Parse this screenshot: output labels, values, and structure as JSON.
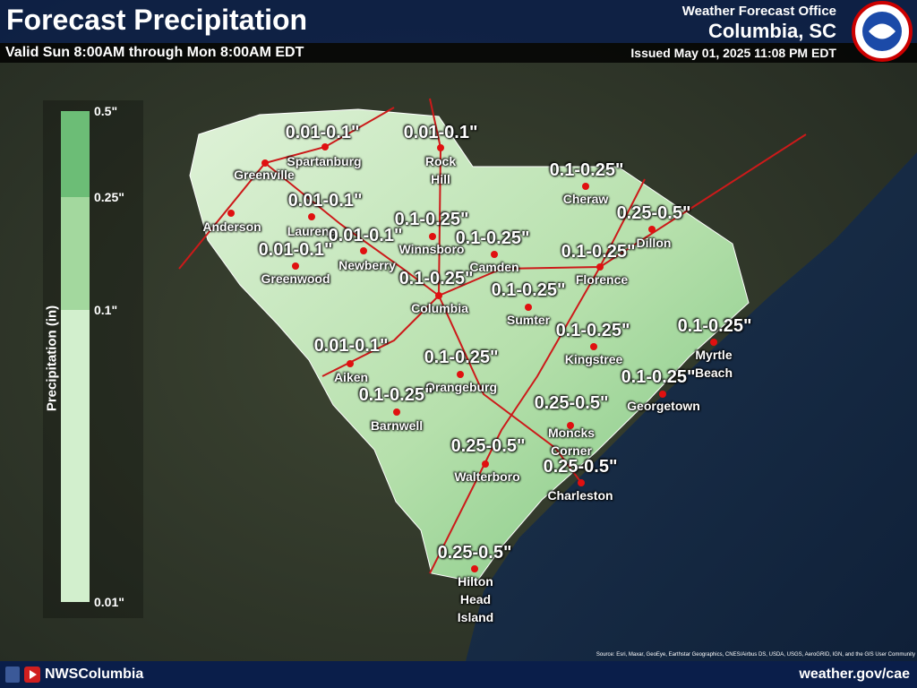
{
  "header": {
    "title": "Forecast Precipitation",
    "subtitle": "Valid Sun 8:00AM through Mon 8:00AM EDT",
    "office_line": "Weather Forecast Office",
    "office": "Columbia, SC",
    "issued": "Issued May 01, 2025 11:08 PM EDT"
  },
  "legend": {
    "title": "Precipitation (in)",
    "labels": [
      "0.5\"",
      "0.25\"",
      "0.1\"",
      "0.01\""
    ]
  },
  "amounts": [
    "0.01-0.1\"",
    "0.01-0.1\"",
    "0.1-0.25\"",
    "0.25-0.5\"",
    "0.01-0.1\"",
    "0.1-0.25\"",
    "0.01-0.1\"",
    "0.01-0.1\"",
    "0.1-0.25\"",
    "0.1-0.25\"",
    "0.1-0.25\"",
    "0.1-0.25\"",
    "0.1-0.25\"",
    "0.1-0.25\"",
    "0.01-0.1\"",
    "0.1-0.25\"",
    "0.1-0.25\"",
    "0.1-0.25\"",
    "0.25-0.5\"",
    "0.25-0.5\"",
    "0.25-0.5\"",
    "0.25-0.5\""
  ],
  "cities": [
    {
      "name": "Spartanburg"
    },
    {
      "name": "Greenville"
    },
    {
      "name": "Rock Hill"
    },
    {
      "name": "Cheraw"
    },
    {
      "name": "Anderson"
    },
    {
      "name": "Laurens"
    },
    {
      "name": "Dillon"
    },
    {
      "name": "Winnsboro"
    },
    {
      "name": "Camden"
    },
    {
      "name": "Newberry"
    },
    {
      "name": "Florence"
    },
    {
      "name": "Greenwood"
    },
    {
      "name": "Columbia"
    },
    {
      "name": "Sumter"
    },
    {
      "name": "Kingstree"
    },
    {
      "name": "Myrtle Beach"
    },
    {
      "name": "Aiken"
    },
    {
      "name": "Orangeburg"
    },
    {
      "name": "Georgetown"
    },
    {
      "name": "Barnwell"
    },
    {
      "name": "Moncks Corner"
    },
    {
      "name": "Walterboro"
    },
    {
      "name": "Charleston"
    },
    {
      "name": "Hilton Head Island"
    }
  ],
  "source": "Source: Esri, Maxar, GeoEye, Earthstar Geographics, CNES/Airbus DS, USDA, USGS, AeroGRID, IGN, and the GIS User Community",
  "footer": {
    "handle": "NWSColumbia",
    "url": "weather.gov/cae"
  }
}
